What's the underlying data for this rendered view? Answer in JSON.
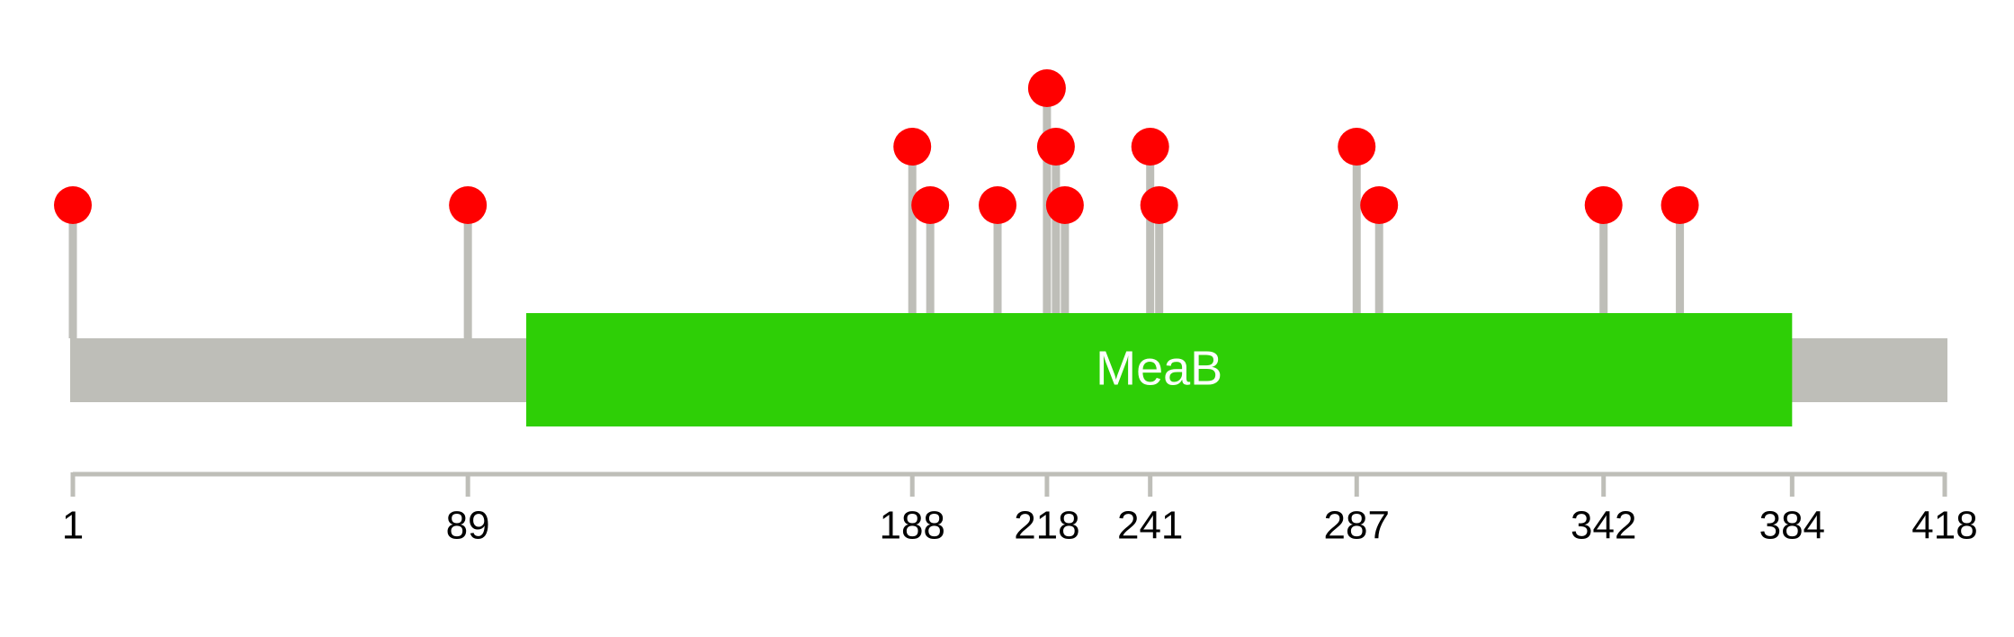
{
  "chart_data": {
    "type": "lollipop",
    "x": [
      1,
      89,
      188,
      192,
      207,
      218,
      220,
      222,
      241,
      243,
      287,
      292,
      342,
      359
    ],
    "values": [
      1,
      1,
      2,
      1,
      1,
      3,
      2,
      1,
      2,
      1,
      2,
      1,
      1,
      1
    ],
    "color": "#ff0000",
    "stem_color": "#bebeb8",
    "backbone_color": "#bebeb8",
    "domains": [
      {
        "name": "MeaB",
        "start": 102,
        "end": 384,
        "color": "#2ecf06"
      }
    ],
    "xlim": [
      1,
      418
    ],
    "xticks": [
      1,
      89,
      188,
      218,
      241,
      287,
      342,
      384,
      418
    ]
  }
}
